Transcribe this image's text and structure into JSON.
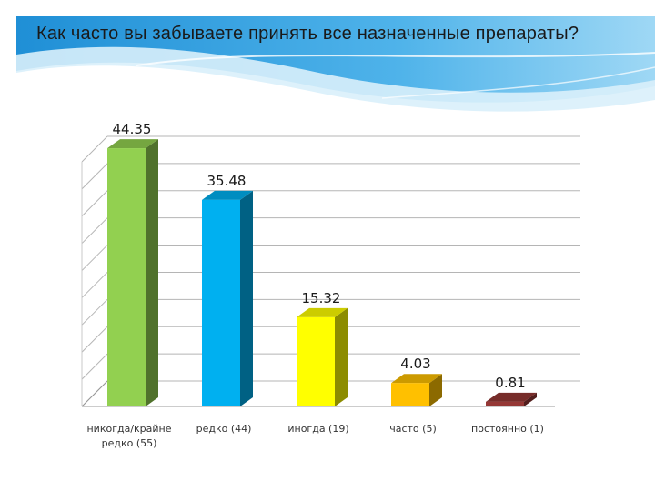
{
  "slide": {
    "title": "Как часто вы забываете принять все назначенные препараты?",
    "header_colors": [
      "#1f8fd6",
      "#6fc3ef",
      "#d9f0fb"
    ]
  },
  "chart_data": {
    "type": "bar",
    "title": "",
    "xlabel": "",
    "ylabel": "",
    "categories": [
      "никогда/крайне редко (55)",
      "редко (44)",
      "иногда (19)",
      "часто (5)",
      "постоянно (1)"
    ],
    "values": [
      44.35,
      35.48,
      15.32,
      4.03,
      0.81
    ],
    "data_labels": [
      "44.35",
      "35.48",
      "15.32",
      "4.03",
      "0.81"
    ],
    "colors": [
      "#92d050",
      "#00b0f0",
      "#ffff00",
      "#ffc000",
      "#953735"
    ],
    "ylim": [
      0,
      45
    ],
    "grid": true,
    "legend": "none",
    "style": "3d-bars"
  }
}
